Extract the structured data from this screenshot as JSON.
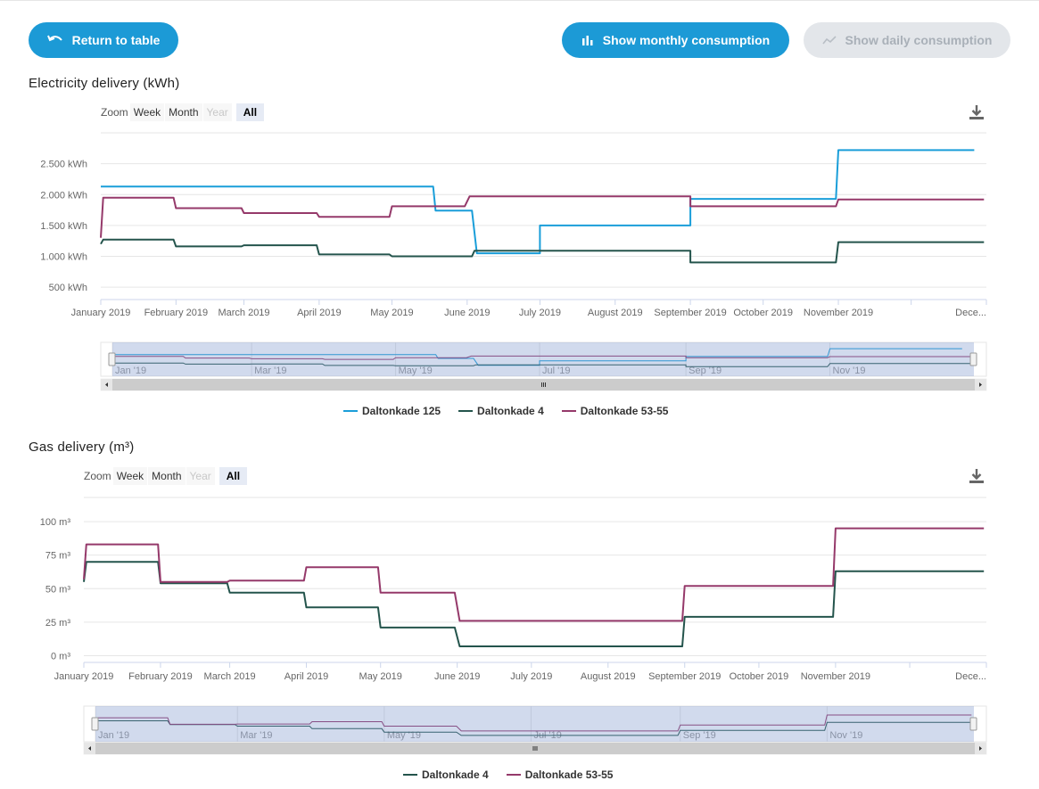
{
  "toolbar": {
    "return_label": "Return to table",
    "monthly_label": "Show monthly consumption",
    "daily_label": "Show daily consumption"
  },
  "range_selector": {
    "zoom": "Zoom",
    "week": "Week",
    "month": "Month",
    "year": "Year",
    "all": "All"
  },
  "colors": {
    "primary": "#1c9ad6",
    "series_125": "#1a9ed9",
    "series_4": "#24544c",
    "series_53": "#95396a"
  },
  "chart_data": [
    {
      "type": "line",
      "title": "Electricity delivery (kWh)",
      "y_tick_labels": [
        "500 kWh",
        "1.000 kWh",
        "1.500 kWh",
        "2.000 kWh",
        "2.500 kWh"
      ],
      "y_ticks": [
        500,
        1000,
        1500,
        2000,
        2500
      ],
      "ylim": [
        300,
        3000
      ],
      "x_tick_labels": [
        "January 2019",
        "February 2019",
        "March 2019",
        "April 2019",
        "May 2019",
        "June 2019",
        "July 2019",
        "August 2019",
        "September 2019",
        "October 2019",
        "November 2019",
        "Dece..."
      ],
      "x_ticks": [
        "2019-01-01",
        "2019-02-01",
        "2019-03-01",
        "2019-04-01",
        "2019-05-01",
        "2019-06-01",
        "2019-07-01",
        "2019-08-01",
        "2019-09-01",
        "2019-10-01",
        "2019-11-01",
        "2019-12-01"
      ],
      "navigator_labels": [
        "Jan '19",
        "Mar '19",
        "May '19",
        "Jul '19",
        "Sep '19",
        "Nov '19"
      ],
      "navigator_dates": [
        "2019-01-01",
        "2019-03-01",
        "2019-05-01",
        "2019-07-01",
        "2019-09-01",
        "2019-11-01"
      ],
      "legend_position": "bottom-center",
      "series": [
        {
          "name": "Daltonkade 125",
          "color": "#1a9ed9",
          "points": [
            [
              "2019-01-01",
              2130
            ],
            [
              "2019-05-18",
              2130
            ],
            [
              "2019-05-19",
              1740
            ],
            [
              "2019-06-03",
              1740
            ],
            [
              "2019-06-05",
              1050
            ],
            [
              "2019-07-01",
              1050
            ],
            [
              "2019-07-01",
              1500
            ],
            [
              "2019-09-01",
              1500
            ],
            [
              "2019-09-01",
              1930
            ],
            [
              "2019-10-31",
              1930
            ],
            [
              "2019-11-01",
              2720
            ],
            [
              "2019-12-27",
              2720
            ]
          ]
        },
        {
          "name": "Daltonkade 4",
          "color": "#24544c",
          "points": [
            [
              "2019-01-01",
              1200
            ],
            [
              "2019-01-02",
              1270
            ],
            [
              "2019-01-31",
              1270
            ],
            [
              "2019-02-01",
              1160
            ],
            [
              "2019-02-28",
              1160
            ],
            [
              "2019-03-01",
              1180
            ],
            [
              "2019-03-31",
              1180
            ],
            [
              "2019-04-01",
              1030
            ],
            [
              "2019-04-30",
              1030
            ],
            [
              "2019-05-01",
              1000
            ],
            [
              "2019-06-03",
              1000
            ],
            [
              "2019-06-04",
              1090
            ],
            [
              "2019-09-01",
              1090
            ],
            [
              "2019-09-01",
              900
            ],
            [
              "2019-10-31",
              900
            ],
            [
              "2019-11-01",
              1230
            ],
            [
              "2019-12-31",
              1230
            ]
          ]
        },
        {
          "name": "Daltonkade 53-55",
          "color": "#95396a",
          "points": [
            [
              "2019-01-01",
              1300
            ],
            [
              "2019-01-02",
              1950
            ],
            [
              "2019-01-31",
              1950
            ],
            [
              "2019-02-01",
              1780
            ],
            [
              "2019-02-28",
              1780
            ],
            [
              "2019-03-01",
              1700
            ],
            [
              "2019-03-31",
              1700
            ],
            [
              "2019-04-01",
              1640
            ],
            [
              "2019-04-30",
              1640
            ],
            [
              "2019-05-01",
              1810
            ],
            [
              "2019-05-31",
              1810
            ],
            [
              "2019-06-02",
              1970
            ],
            [
              "2019-09-01",
              1970
            ],
            [
              "2019-09-01",
              1810
            ],
            [
              "2019-10-31",
              1810
            ],
            [
              "2019-11-01",
              1920
            ],
            [
              "2019-12-31",
              1920
            ]
          ]
        }
      ]
    },
    {
      "type": "line",
      "title": "Gas delivery (m³)",
      "y_tick_labels": [
        "0 m³",
        "25 m³",
        "50 m³",
        "75 m³",
        "100 m³"
      ],
      "y_ticks": [
        0,
        25,
        50,
        75,
        100
      ],
      "ylim": [
        -5,
        118
      ],
      "x_tick_labels": [
        "January 2019",
        "February 2019",
        "March 2019",
        "April 2019",
        "May 2019",
        "June 2019",
        "July 2019",
        "August 2019",
        "September 2019",
        "October 2019",
        "November 2019",
        "Dece..."
      ],
      "x_ticks": [
        "2019-01-01",
        "2019-02-01",
        "2019-03-01",
        "2019-04-01",
        "2019-05-01",
        "2019-06-01",
        "2019-07-01",
        "2019-08-01",
        "2019-09-01",
        "2019-10-01",
        "2019-11-01",
        "2019-12-01"
      ],
      "navigator_labels": [
        "Jan '19",
        "Mar '19",
        "May '19",
        "Jul '19",
        "Sep '19",
        "Nov '19"
      ],
      "navigator_dates": [
        "2019-01-01",
        "2019-03-01",
        "2019-05-01",
        "2019-07-01",
        "2019-09-01",
        "2019-11-01"
      ],
      "legend_position": "bottom-center",
      "series": [
        {
          "name": "Daltonkade 4",
          "color": "#24544c",
          "points": [
            [
              "2019-01-01",
              55
            ],
            [
              "2019-01-02",
              70
            ],
            [
              "2019-01-31",
              70
            ],
            [
              "2019-02-01",
              54
            ],
            [
              "2019-02-28",
              54
            ],
            [
              "2019-03-01",
              47
            ],
            [
              "2019-03-31",
              47
            ],
            [
              "2019-04-01",
              36
            ],
            [
              "2019-04-30",
              36
            ],
            [
              "2019-05-01",
              21
            ],
            [
              "2019-05-31",
              21
            ],
            [
              "2019-06-02",
              7
            ],
            [
              "2019-08-31",
              7
            ],
            [
              "2019-09-01",
              29
            ],
            [
              "2019-10-31",
              29
            ],
            [
              "2019-11-01",
              63
            ],
            [
              "2019-12-31",
              63
            ]
          ]
        },
        {
          "name": "Daltonkade 53-55",
          "color": "#95396a",
          "points": [
            [
              "2019-01-01",
              57
            ],
            [
              "2019-01-02",
              83
            ],
            [
              "2019-01-31",
              83
            ],
            [
              "2019-02-01",
              55
            ],
            [
              "2019-02-28",
              55
            ],
            [
              "2019-03-01",
              56
            ],
            [
              "2019-03-31",
              56
            ],
            [
              "2019-04-01",
              66
            ],
            [
              "2019-04-30",
              66
            ],
            [
              "2019-05-01",
              47
            ],
            [
              "2019-05-31",
              47
            ],
            [
              "2019-06-02",
              26
            ],
            [
              "2019-08-31",
              26
            ],
            [
              "2019-09-01",
              52
            ],
            [
              "2019-10-31",
              52
            ],
            [
              "2019-11-01",
              95
            ],
            [
              "2019-12-31",
              95
            ]
          ]
        }
      ]
    }
  ]
}
